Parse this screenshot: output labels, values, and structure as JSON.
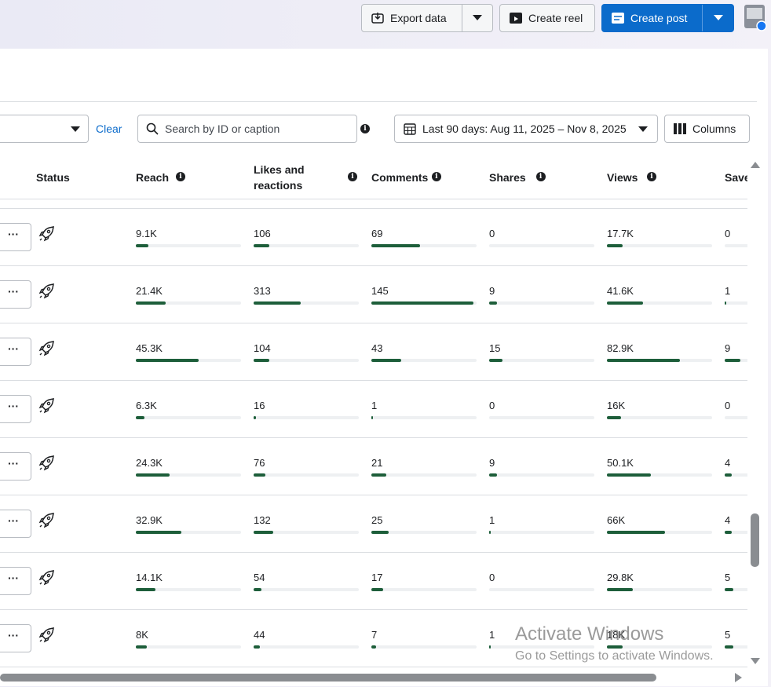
{
  "toolbar": {
    "export": "Export data",
    "create_reel": "Create reel",
    "create_post": "Create post"
  },
  "filters": {
    "clear": "Clear",
    "search_placeholder": "Search by ID or caption",
    "date_range": "Last 90 days: Aug 11, 2025 – Nov 8, 2025",
    "columns": "Columns"
  },
  "table": {
    "status_column": "Status",
    "columns": [
      {
        "title": "Reach",
        "bar_range": [
          0,
          76000
        ]
      },
      {
        "title": "Likes and reactions",
        "bar_range": [
          0,
          700
        ]
      },
      {
        "title": "Comments",
        "bar_range": [
          0,
          150
        ]
      },
      {
        "title": "Shares",
        "bar_range": [
          0,
          115
        ]
      },
      {
        "title": "Views",
        "bar_range": [
          0,
          120000
        ]
      },
      {
        "title": "Save",
        "bar_range": [
          0,
          60
        ]
      }
    ],
    "rows": [
      [
        {
          "value": 9100,
          "label": "9.1K"
        },
        106,
        69,
        0,
        {
          "value": 17700,
          "label": "17.7K"
        },
        0
      ],
      [
        {
          "value": 21400,
          "label": "21.4K"
        },
        313,
        145,
        9,
        {
          "value": 41600,
          "label": "41.6K"
        },
        1
      ],
      [
        {
          "value": 45300,
          "label": "45.3K"
        },
        104,
        43,
        15,
        {
          "value": 82900,
          "label": "82.9K"
        },
        9
      ],
      [
        {
          "value": 6300,
          "label": "6.3K"
        },
        16,
        1,
        0,
        {
          "value": 16000,
          "label": "16K"
        },
        0
      ],
      [
        {
          "value": 24300,
          "label": "24.3K"
        },
        76,
        21,
        9,
        {
          "value": 50100,
          "label": "50.1K"
        },
        4
      ],
      [
        {
          "value": 32900,
          "label": "32.9K"
        },
        132,
        25,
        1,
        {
          "value": 66000,
          "label": "66K"
        },
        4
      ],
      [
        {
          "value": 14100,
          "label": "14.1K"
        },
        54,
        17,
        0,
        {
          "value": 29800,
          "label": "29.8K"
        },
        5
      ],
      [
        {
          "value": 8000,
          "label": "8K"
        },
        44,
        7,
        1,
        {
          "value": 18000,
          "label": "18K"
        },
        5
      ]
    ]
  },
  "watermark": {
    "title": "Activate Windows",
    "subtitle": "Go to Settings to activate Windows."
  }
}
